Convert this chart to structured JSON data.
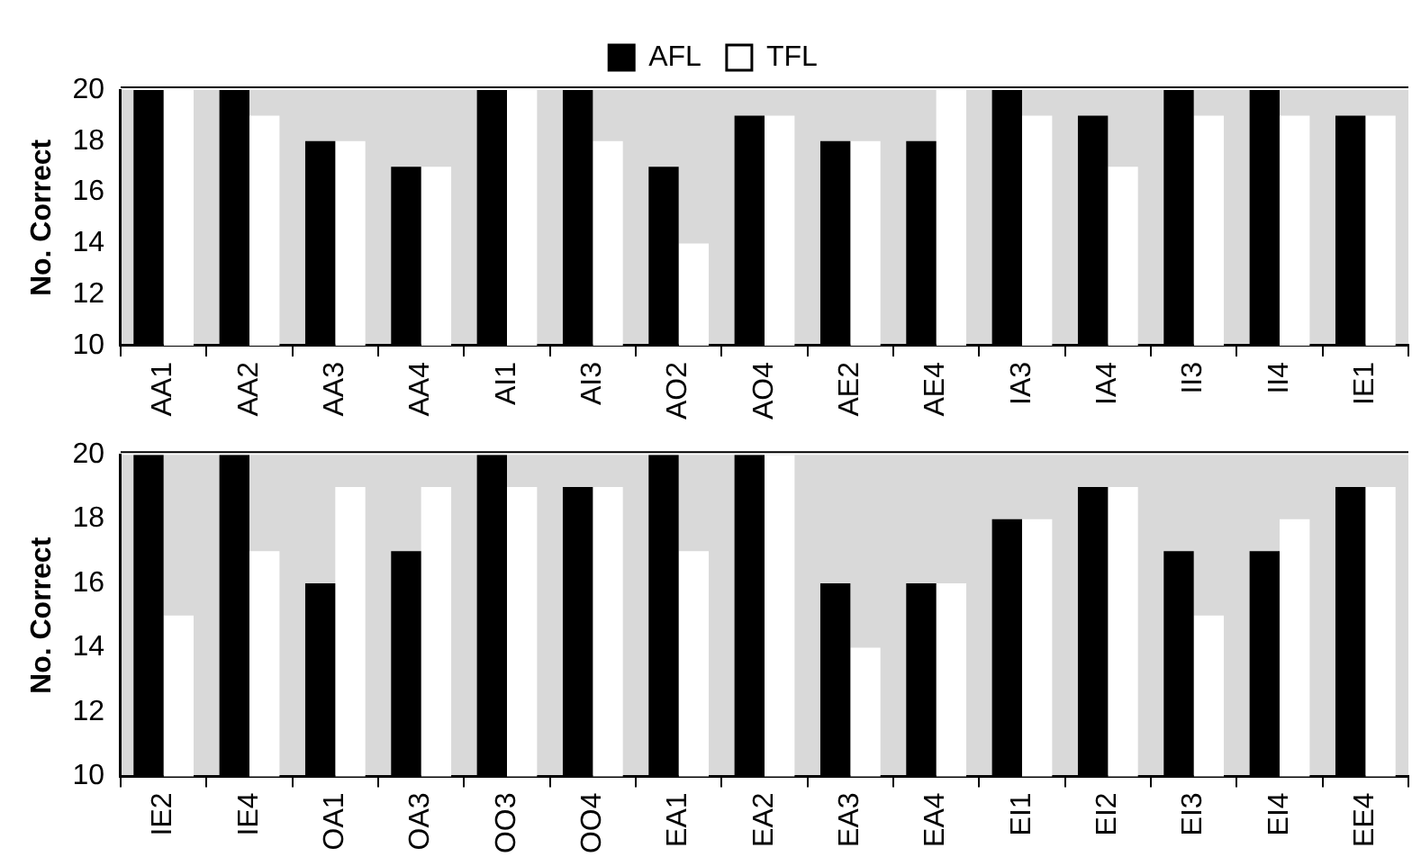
{
  "chart_data": [
    {
      "type": "bar",
      "ylabel": "No. Correct",
      "categories": [
        "AA1",
        "AA2",
        "AA3",
        "AA4",
        "AI1",
        "AI3",
        "AO2",
        "AO4",
        "AE2",
        "AE4",
        "IA3",
        "IA4",
        "II3",
        "II4",
        "IE1"
      ],
      "series": [
        {
          "name": "AFL",
          "color": "#000000",
          "values": [
            20,
            20,
            18,
            17,
            20,
            20,
            17,
            19,
            18,
            18,
            20,
            19,
            20,
            20,
            19
          ]
        },
        {
          "name": "TFL",
          "color": "#ffffff",
          "values": [
            20,
            19,
            18,
            17,
            20,
            18,
            14,
            19,
            18,
            20,
            19,
            17,
            19,
            19,
            19
          ]
        }
      ],
      "ylim": [
        10,
        20
      ],
      "yticks": [
        10,
        12,
        14,
        16,
        18,
        20
      ],
      "legend": "top"
    },
    {
      "type": "bar",
      "ylabel": "No. Correct",
      "categories": [
        "IE2",
        "IE4",
        "OA1",
        "OA3",
        "OO3",
        "OO4",
        "EA1",
        "EA2",
        "EA3",
        "EA4",
        "EI1",
        "EI2",
        "EI3",
        "EI4",
        "EE4"
      ],
      "series": [
        {
          "color": "#000000",
          "values": [
            20,
            20,
            16,
            17,
            20,
            19,
            20,
            20,
            16,
            16,
            18,
            19,
            17,
            17,
            19
          ]
        },
        {
          "color": "#ffffff",
          "values": [
            15,
            17,
            19,
            19,
            19,
            19,
            17,
            20,
            14,
            16,
            18,
            19,
            15,
            18,
            19
          ]
        }
      ],
      "ylim": [
        10,
        20
      ],
      "yticks": [
        10,
        12,
        14,
        16,
        18,
        20
      ]
    }
  ]
}
